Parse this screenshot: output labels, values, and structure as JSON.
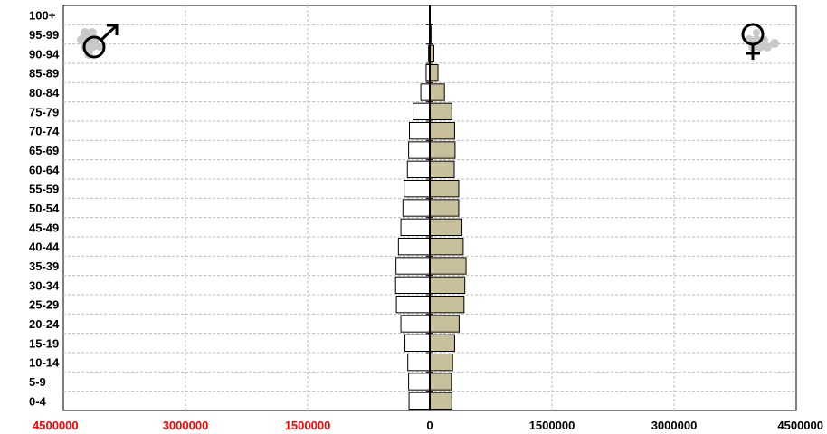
{
  "chart_data": {
    "type": "bar",
    "orientation": "horizontal",
    "subtype": "population-pyramid",
    "categories": [
      "0-4",
      "5-9",
      "10-14",
      "15-19",
      "20-24",
      "25-29",
      "30-34",
      "35-39",
      "40-44",
      "45-49",
      "50-54",
      "55-59",
      "60-64",
      "65-69",
      "70-74",
      "75-79",
      "80-84",
      "85-89",
      "90-94",
      "95-99",
      "100+"
    ],
    "series": [
      {
        "side": "left",
        "color": "#ffffff",
        "values": [
          255000,
          260000,
          270000,
          305000,
          355000,
          410000,
          420000,
          415000,
          385000,
          355000,
          330000,
          315000,
          275000,
          260000,
          250000,
          205000,
          110000,
          45000,
          15000,
          5000,
          0
        ]
      },
      {
        "side": "right",
        "color": "#c8c09a",
        "values": [
          270000,
          265000,
          280000,
          305000,
          360000,
          420000,
          430000,
          445000,
          410000,
          395000,
          355000,
          355000,
          300000,
          310000,
          305000,
          270000,
          180000,
          100000,
          50000,
          15000,
          0
        ]
      }
    ],
    "xlim": [
      -4500000,
      4500000
    ],
    "x_ticks": [
      {
        "value": -4500000,
        "label": "4500000"
      },
      {
        "value": -3000000,
        "label": "3000000"
      },
      {
        "value": -1500000,
        "label": "1500000"
      },
      {
        "value": 0,
        "label": "0"
      },
      {
        "value": 1500000,
        "label": "1500000"
      },
      {
        "value": 3000000,
        "label": "3000000"
      },
      {
        "value": 4500000,
        "label": "4500000"
      }
    ],
    "left_tick_color": "#ff0000",
    "right_tick_color": "#000000",
    "grid": true,
    "icons": {
      "left": "male-symbol-icon",
      "right": "female-symbol-icon"
    },
    "title": "",
    "xlabel": "",
    "ylabel": ""
  }
}
